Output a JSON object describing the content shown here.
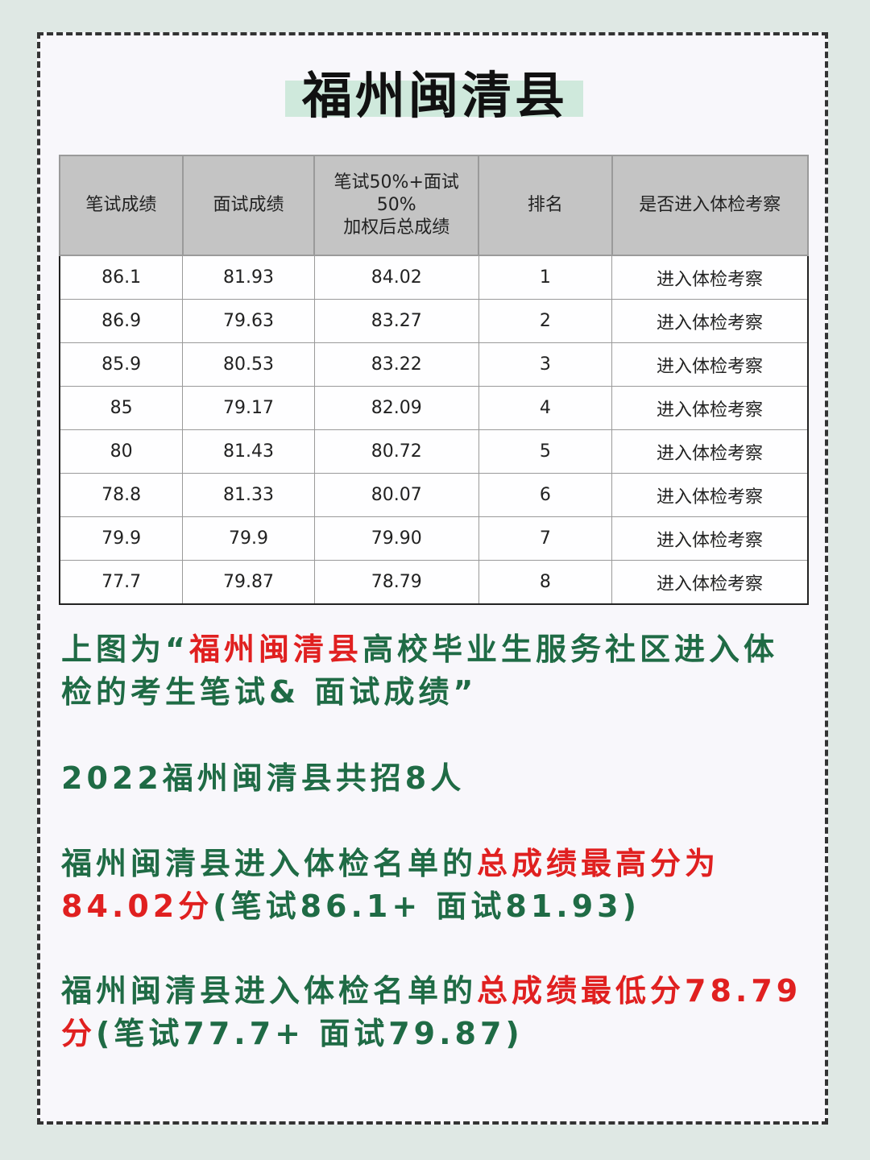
{
  "title": "福州闽清县",
  "table": {
    "headers": [
      "笔试成绩",
      "面试成绩",
      "笔试50%+面试50%加权后总成绩",
      "排名",
      "是否进入体检考察"
    ],
    "header_lines": [
      "笔试50%+面试50%",
      "加权后总成绩"
    ],
    "rows": [
      [
        "86.1",
        "81.93",
        "84.02",
        "1",
        "进入体检考察"
      ],
      [
        "86.9",
        "79.63",
        "83.27",
        "2",
        "进入体检考察"
      ],
      [
        "85.9",
        "80.53",
        "83.22",
        "3",
        "进入体检考察"
      ],
      [
        "85",
        "79.17",
        "82.09",
        "4",
        "进入体检考察"
      ],
      [
        "80",
        "81.43",
        "80.72",
        "5",
        "进入体检考察"
      ],
      [
        "78.8",
        "81.33",
        "80.07",
        "6",
        "进入体检考察"
      ],
      [
        "79.9",
        "79.9",
        "79.90",
        "7",
        "进入体检考察"
      ],
      [
        "77.7",
        "79.87",
        "78.79",
        "8",
        "进入体检考察"
      ]
    ]
  },
  "paragraphs": {
    "p1": {
      "a": "上图为“",
      "b": "福州闽清县",
      "c": "高校毕业生服务社区进入体检的考生笔试& 面试成绩”"
    },
    "p2": {
      "a": "2022福州闽清县共招8人"
    },
    "p3": {
      "a": "福州闽清县进入体检名单的",
      "b": "总成绩最高分为84.02分",
      "c": "(笔试86.1+ 面试81.93)"
    },
    "p4": {
      "a": "福州闽清县进入体检名单的",
      "b": "总成绩最低分78.79分",
      "c": "(笔试77.7+ 面试79.87)"
    }
  },
  "colors": {
    "green": "#1f6b45",
    "red": "#e02020",
    "header_bg": "#c4c4c4",
    "title_band": "#cfe9dc"
  }
}
